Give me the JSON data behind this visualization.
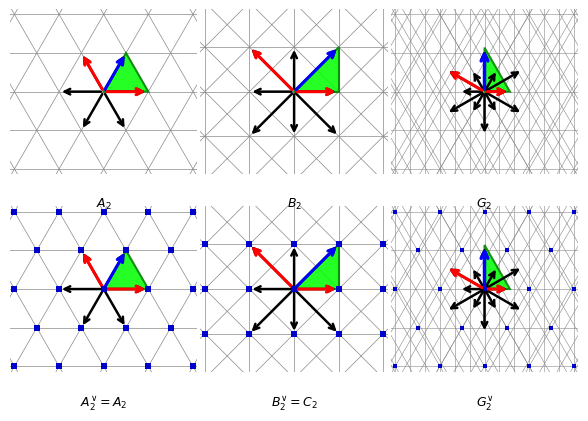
{
  "figsize": [
    5.95,
    4.2
  ],
  "dpi": 100,
  "grid_color": "#888888",
  "grid_lw": 0.5,
  "arrow_lw_black": 1.8,
  "arrow_lw_color": 2.0,
  "arrow_ms": 10,
  "xlim": [
    -2.1,
    2.1
  ],
  "ylim": [
    -1.85,
    1.85
  ],
  "labels": [
    "$A_2$",
    "$B_2$",
    "$G_2$",
    "$A_2^{\\vee} = A_2$",
    "$B_2^{\\vee} = C_2$",
    "$G_2^{\\vee}$"
  ],
  "dot_color": "#0000cc",
  "dot_size": 4.0
}
